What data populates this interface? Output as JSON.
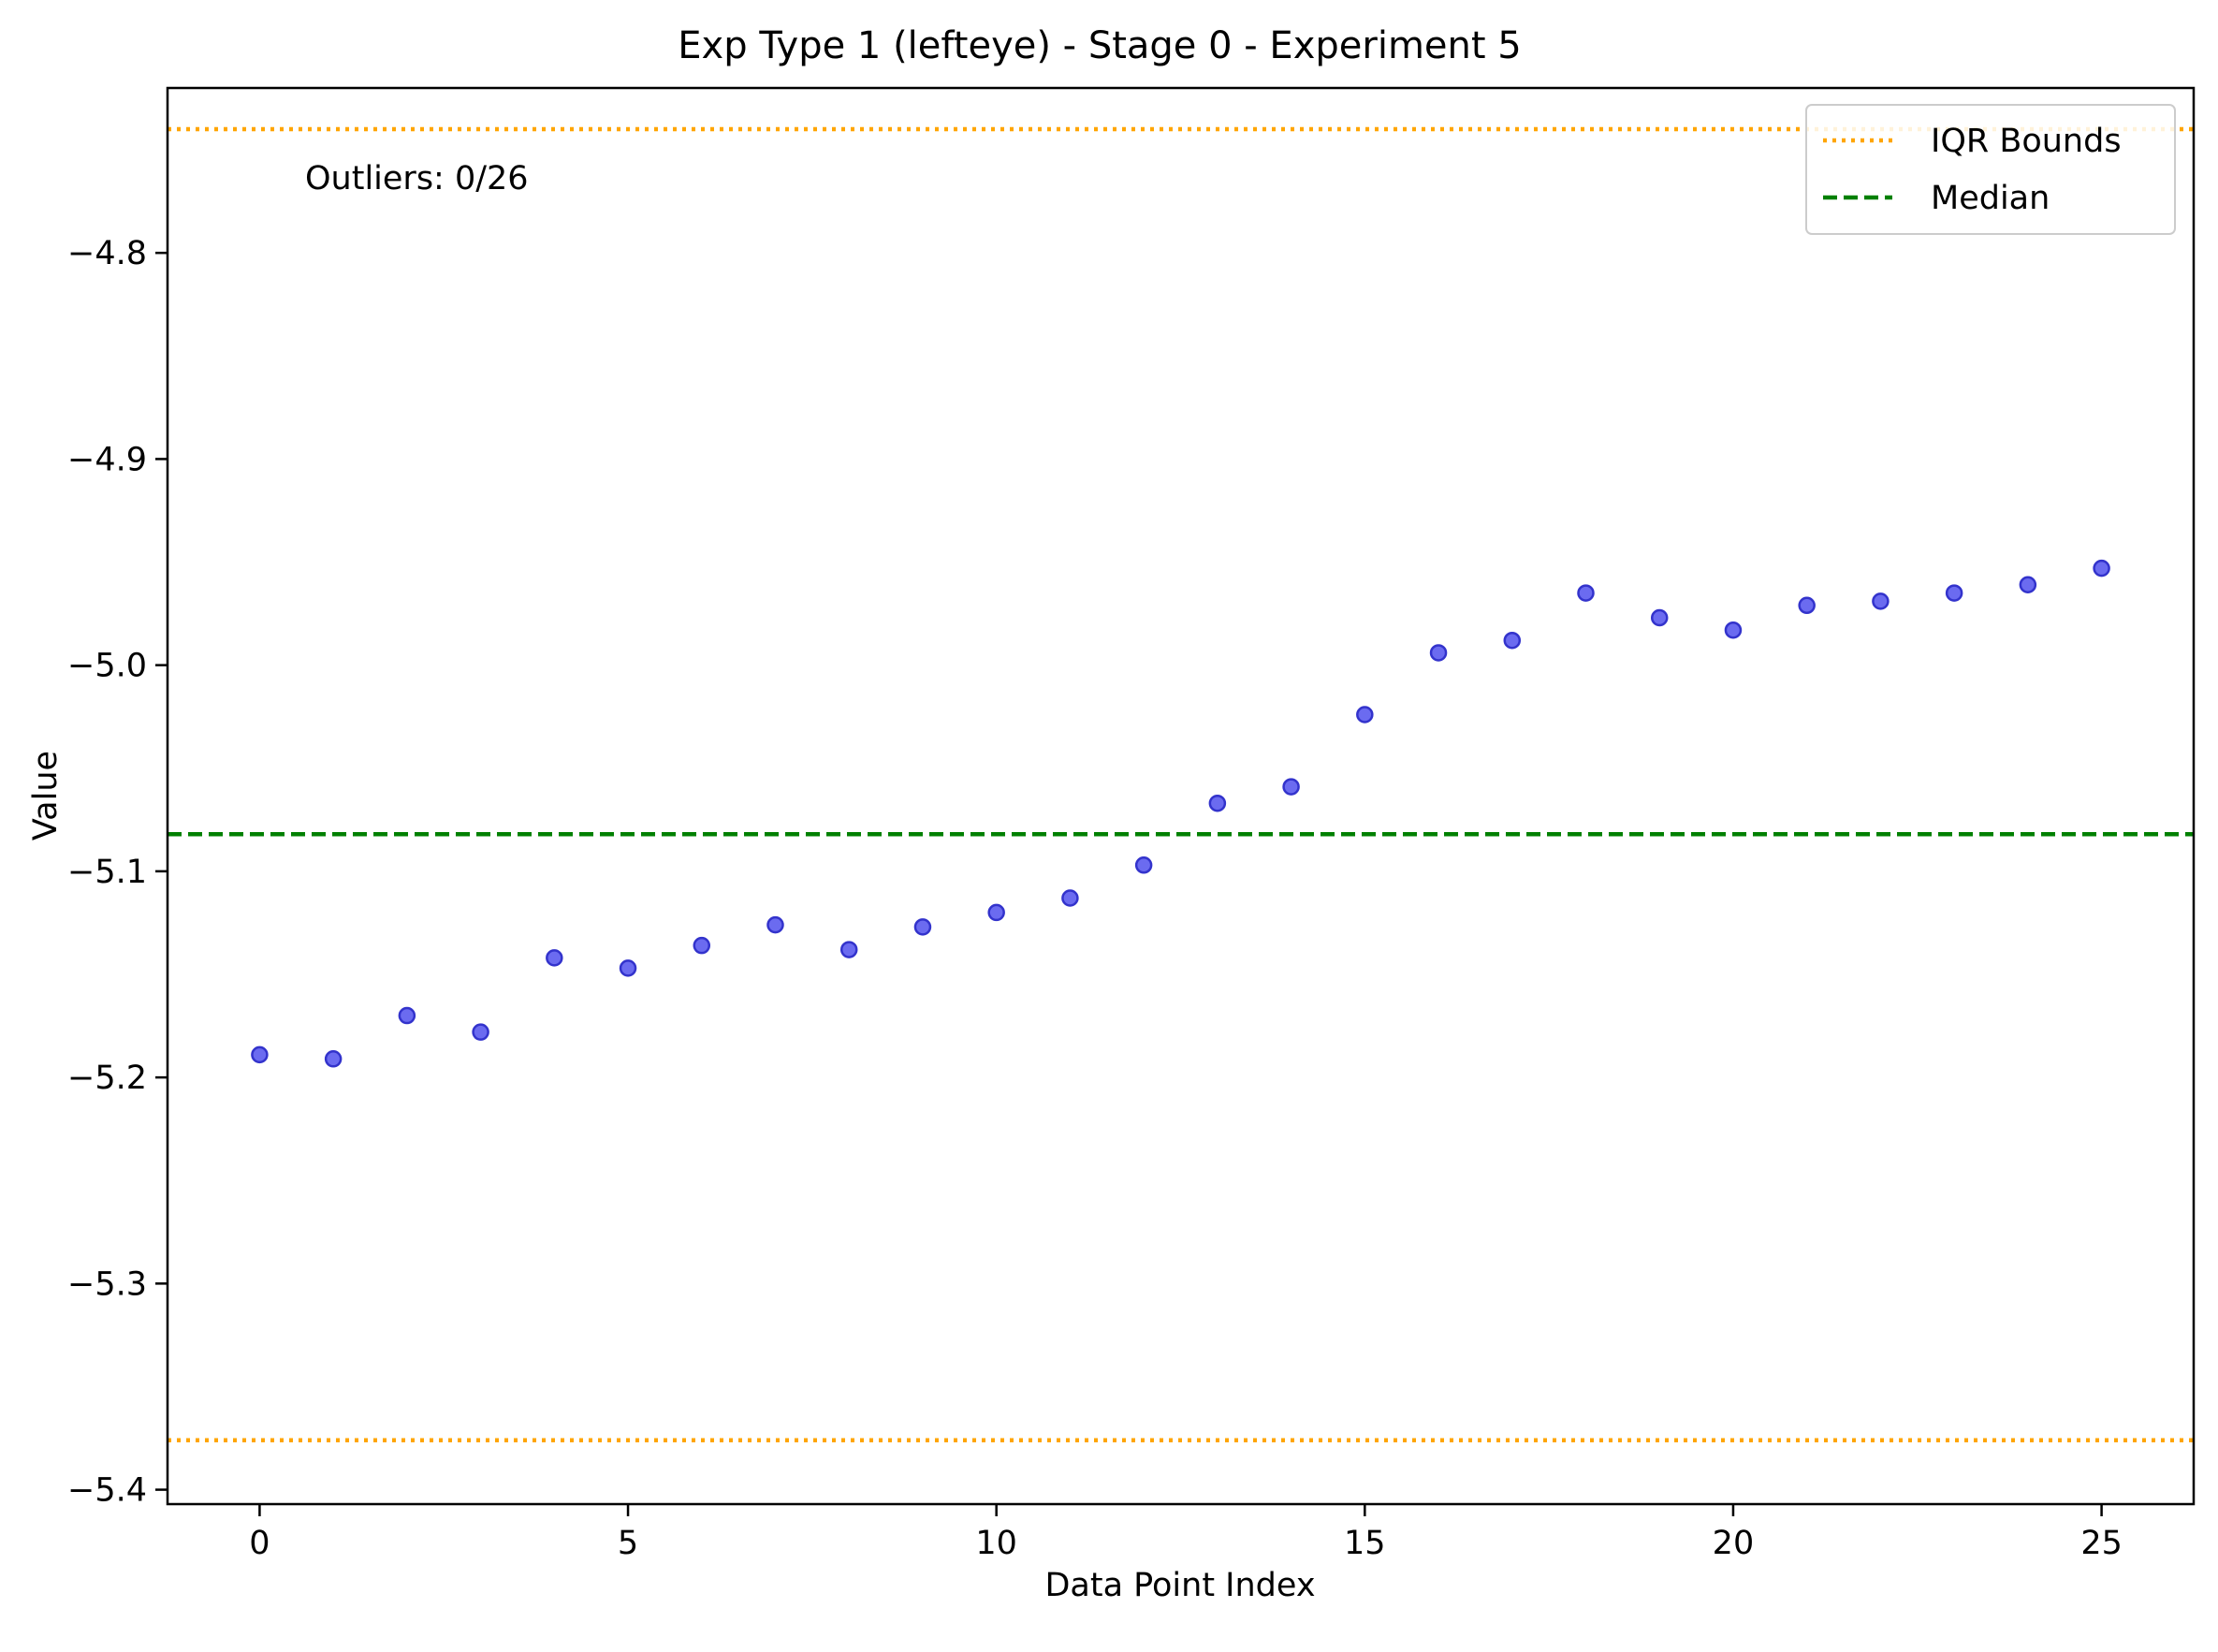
{
  "chart_data": {
    "type": "scatter",
    "title": "Exp Type 1 (lefteye) - Stage 0 - Experiment 5",
    "xlabel": "Data Point Index",
    "ylabel": "Value",
    "xlim": [
      -1.25,
      26.25
    ],
    "ylim": [
      -5.407,
      -4.72
    ],
    "x_ticks": [
      0,
      5,
      10,
      15,
      20,
      25
    ],
    "x_tick_labels": [
      "0",
      "5",
      "10",
      "15",
      "20",
      "25"
    ],
    "y_ticks": [
      -4.8,
      -4.9,
      -5.0,
      -5.1,
      -5.2,
      -5.3,
      -5.4
    ],
    "y_tick_labels": [
      "−4.8",
      "−4.9",
      "−5.0",
      "−5.1",
      "−5.2",
      "−5.3",
      "−5.4"
    ],
    "grid": false,
    "legend_position": "top-right",
    "annotation": "Outliers: 0/26",
    "series": [
      {
        "color": "#6b6bf0",
        "edge_color": "#3333cc",
        "x": [
          0,
          1,
          2,
          3,
          4,
          5,
          6,
          7,
          8,
          9,
          10,
          11,
          12,
          13,
          14,
          15,
          16,
          17,
          18,
          19,
          20,
          21,
          22,
          23,
          24,
          25
        ],
        "y": [
          -5.189,
          -5.191,
          -5.17,
          -5.178,
          -5.142,
          -5.147,
          -5.136,
          -5.126,
          -5.138,
          -5.127,
          -5.12,
          -5.113,
          -5.097,
          -5.067,
          -5.059,
          -5.024,
          -4.994,
          -4.988,
          -4.965,
          -4.977,
          -4.983,
          -4.971,
          -4.969,
          -4.965,
          -4.961,
          -4.953
        ]
      }
    ],
    "reference_lines": [
      {
        "name": "IQR Bounds",
        "style": "dotted",
        "color": "#ffa500",
        "values": [
          -4.74,
          -5.376
        ]
      },
      {
        "name": "Median",
        "style": "dashed",
        "color": "#008000",
        "values": [
          -5.082
        ]
      }
    ]
  }
}
